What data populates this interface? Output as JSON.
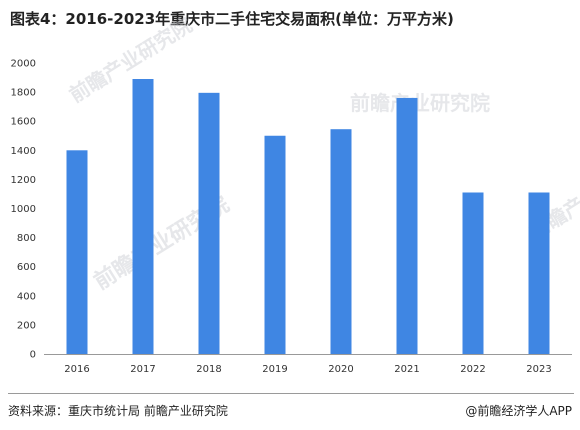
{
  "header": {
    "title": "图表4：2016-2023年重庆市二手住宅交易面积(单位：万平方米)"
  },
  "footer": {
    "source": "资料来源：重庆市统计局 前瞻产业研究院",
    "brand": "@前瞻经济学人APP"
  },
  "watermark": {
    "text": "前瞻产业研究院"
  },
  "colors": {
    "bar": "#3f86e3",
    "axis": "#999999",
    "text": "#333333"
  },
  "chart_data": {
    "type": "bar",
    "title": "图表4：2016-2023年重庆市二手住宅交易面积(单位：万平方米)",
    "xlabel": "",
    "ylabel": "",
    "categories": [
      "2016",
      "2017",
      "2018",
      "2019",
      "2020",
      "2021",
      "2022",
      "2023"
    ],
    "values": [
      1400,
      1890,
      1795,
      1500,
      1545,
      1760,
      1110,
      1110
    ],
    "ylim": [
      0,
      2000
    ],
    "yticks": [
      0,
      200,
      400,
      600,
      800,
      1000,
      1200,
      1400,
      1600,
      1800,
      2000
    ],
    "grid": false,
    "legend": "none"
  }
}
